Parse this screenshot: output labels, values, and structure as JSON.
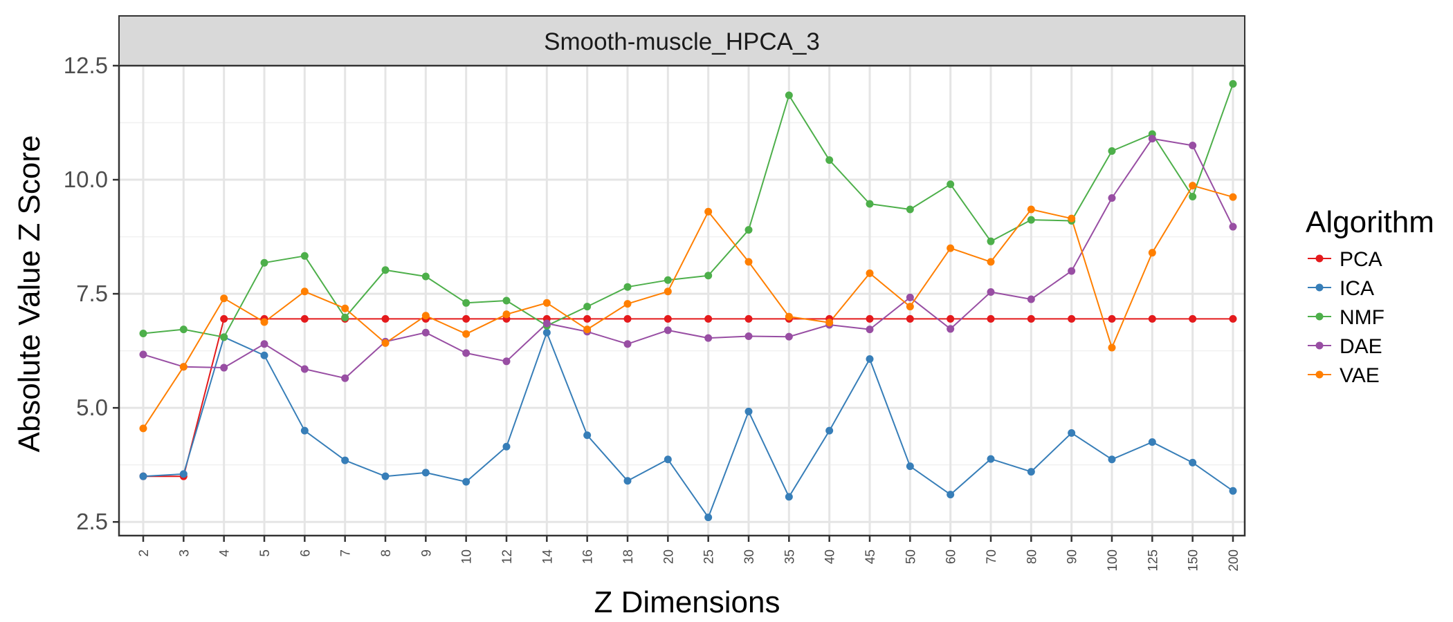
{
  "chart_data": {
    "type": "line",
    "title": "Smooth-muscle_HPCA_3",
    "xlabel": "Z Dimensions",
    "ylabel": "Absolute Value Z Score",
    "ylim": [
      2.2,
      12.5
    ],
    "yticks": [
      "2.5",
      "5.0",
      "7.5",
      "10.0",
      "12.5"
    ],
    "ytick_values": [
      2.5,
      5.0,
      7.5,
      10.0,
      12.5
    ],
    "categories": [
      "2",
      "3",
      "4",
      "5",
      "6",
      "7",
      "8",
      "9",
      "10",
      "12",
      "14",
      "16",
      "18",
      "20",
      "25",
      "30",
      "35",
      "40",
      "45",
      "50",
      "60",
      "70",
      "80",
      "90",
      "100",
      "125",
      "150",
      "200"
    ],
    "grid": true,
    "legend_position": "right",
    "legend_title": "Algorithm",
    "series": [
      {
        "name": "PCA",
        "color": "#e41a1c",
        "values": [
          3.5,
          3.5,
          6.95,
          6.95,
          6.95,
          6.95,
          6.95,
          6.95,
          6.95,
          6.95,
          6.95,
          6.95,
          6.95,
          6.95,
          6.95,
          6.95,
          6.95,
          6.95,
          6.95,
          6.95,
          6.95,
          6.95,
          6.95,
          6.95,
          6.95,
          6.95,
          6.95,
          6.95
        ]
      },
      {
        "name": "ICA",
        "color": "#377eb8",
        "values": [
          3.5,
          3.55,
          6.55,
          6.15,
          4.5,
          3.85,
          3.5,
          3.58,
          3.38,
          4.15,
          6.65,
          4.4,
          3.4,
          3.87,
          2.6,
          4.92,
          3.05,
          4.5,
          6.07,
          3.72,
          3.1,
          3.88,
          3.6,
          4.45,
          3.87,
          4.25,
          3.8,
          3.18
        ]
      },
      {
        "name": "NMF",
        "color": "#4daf4a",
        "values": [
          6.63,
          6.72,
          6.55,
          8.18,
          8.33,
          6.98,
          8.02,
          7.88,
          7.3,
          7.35,
          6.8,
          7.22,
          7.65,
          7.8,
          7.9,
          8.9,
          11.85,
          10.43,
          9.47,
          9.35,
          9.9,
          8.65,
          9.12,
          9.1,
          10.63,
          11.0,
          9.63,
          12.1
        ]
      },
      {
        "name": "DAE",
        "color": "#984ea3",
        "values": [
          6.17,
          5.9,
          5.88,
          6.4,
          5.85,
          5.65,
          6.45,
          6.65,
          6.2,
          6.02,
          6.85,
          6.67,
          6.4,
          6.7,
          6.53,
          6.57,
          6.56,
          6.82,
          6.72,
          7.42,
          6.73,
          7.54,
          7.38,
          8.0,
          9.6,
          10.9,
          10.75,
          8.97
        ]
      },
      {
        "name": "VAE",
        "color": "#ff7f00",
        "values": [
          4.55,
          5.9,
          7.4,
          6.88,
          7.55,
          7.18,
          6.42,
          7.02,
          6.62,
          7.05,
          7.3,
          6.72,
          7.28,
          7.55,
          9.3,
          8.2,
          7.0,
          6.87,
          7.95,
          7.22,
          8.5,
          8.2,
          9.35,
          9.15,
          6.32,
          8.4,
          9.87,
          9.62
        ]
      }
    ]
  }
}
